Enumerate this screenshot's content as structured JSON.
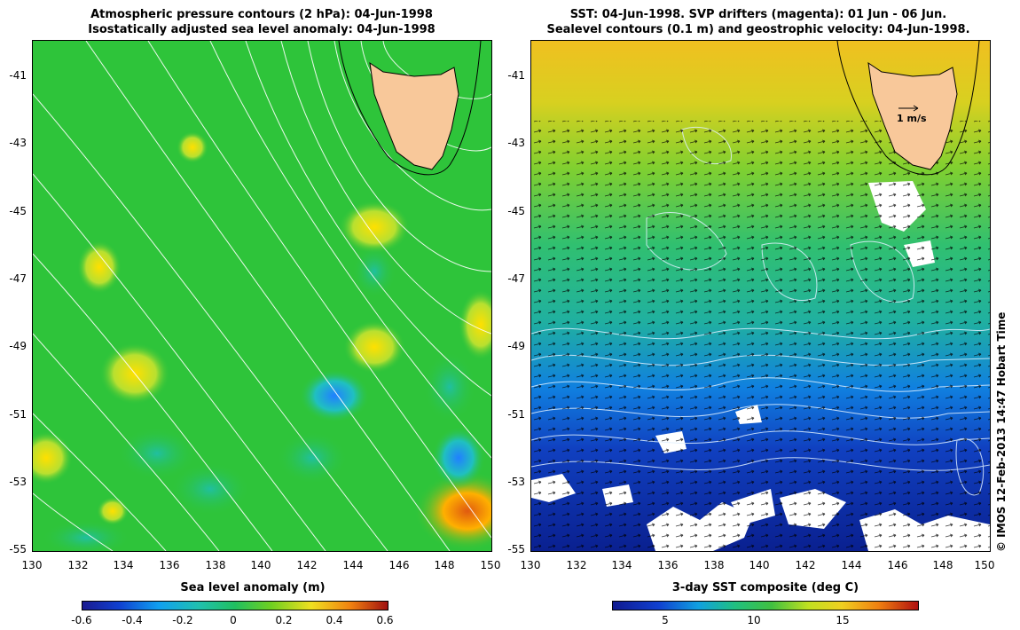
{
  "left_panel": {
    "title_line1": "Atmospheric pressure contours (2 hPa): 04-Jun-1998",
    "title_line2": "Isostatically adjusted sea level anomaly: 04-Jun-1998",
    "x_ticks": [
      "130",
      "132",
      "134",
      "136",
      "138",
      "140",
      "142",
      "144",
      "146",
      "148",
      "150"
    ],
    "y_ticks": [
      "-41",
      "-43",
      "-45",
      "-47",
      "-49",
      "-51",
      "-53",
      "-55"
    ],
    "colorbar_label": "Sea level anomaly (m)",
    "colorbar_ticks": [
      "-0.6",
      "-0.4",
      "-0.2",
      "0",
      "0.2",
      "0.4",
      "0.6"
    ]
  },
  "right_panel": {
    "title_line1": "SST: 04-Jun-1998. SVP drifters (magenta): 01 Jun - 06 Jun.",
    "title_line2": "Sealevel contours (0.1 m) and geostrophic velocity: 04-Jun-1998.",
    "x_ticks": [
      "130",
      "132",
      "134",
      "136",
      "138",
      "140",
      "142",
      "144",
      "146",
      "148",
      "150"
    ],
    "y_ticks": [
      "-41",
      "-43",
      "-45",
      "-47",
      "-49",
      "-51",
      "-53",
      "-55"
    ],
    "scale_label": "1 m/s",
    "colorbar_label": "3-day SST composite (deg C)",
    "colorbar_ticks": [
      "5",
      "10",
      "15"
    ]
  },
  "credit": "© IMOS 12-Feb-2013 14:47 Hobart Time",
  "colors": {
    "land": "#f8c89a",
    "anomaly_bg": "#2ec43a",
    "sst_warm": "#f0c020",
    "sst_cold": "#0a2aa0"
  }
}
